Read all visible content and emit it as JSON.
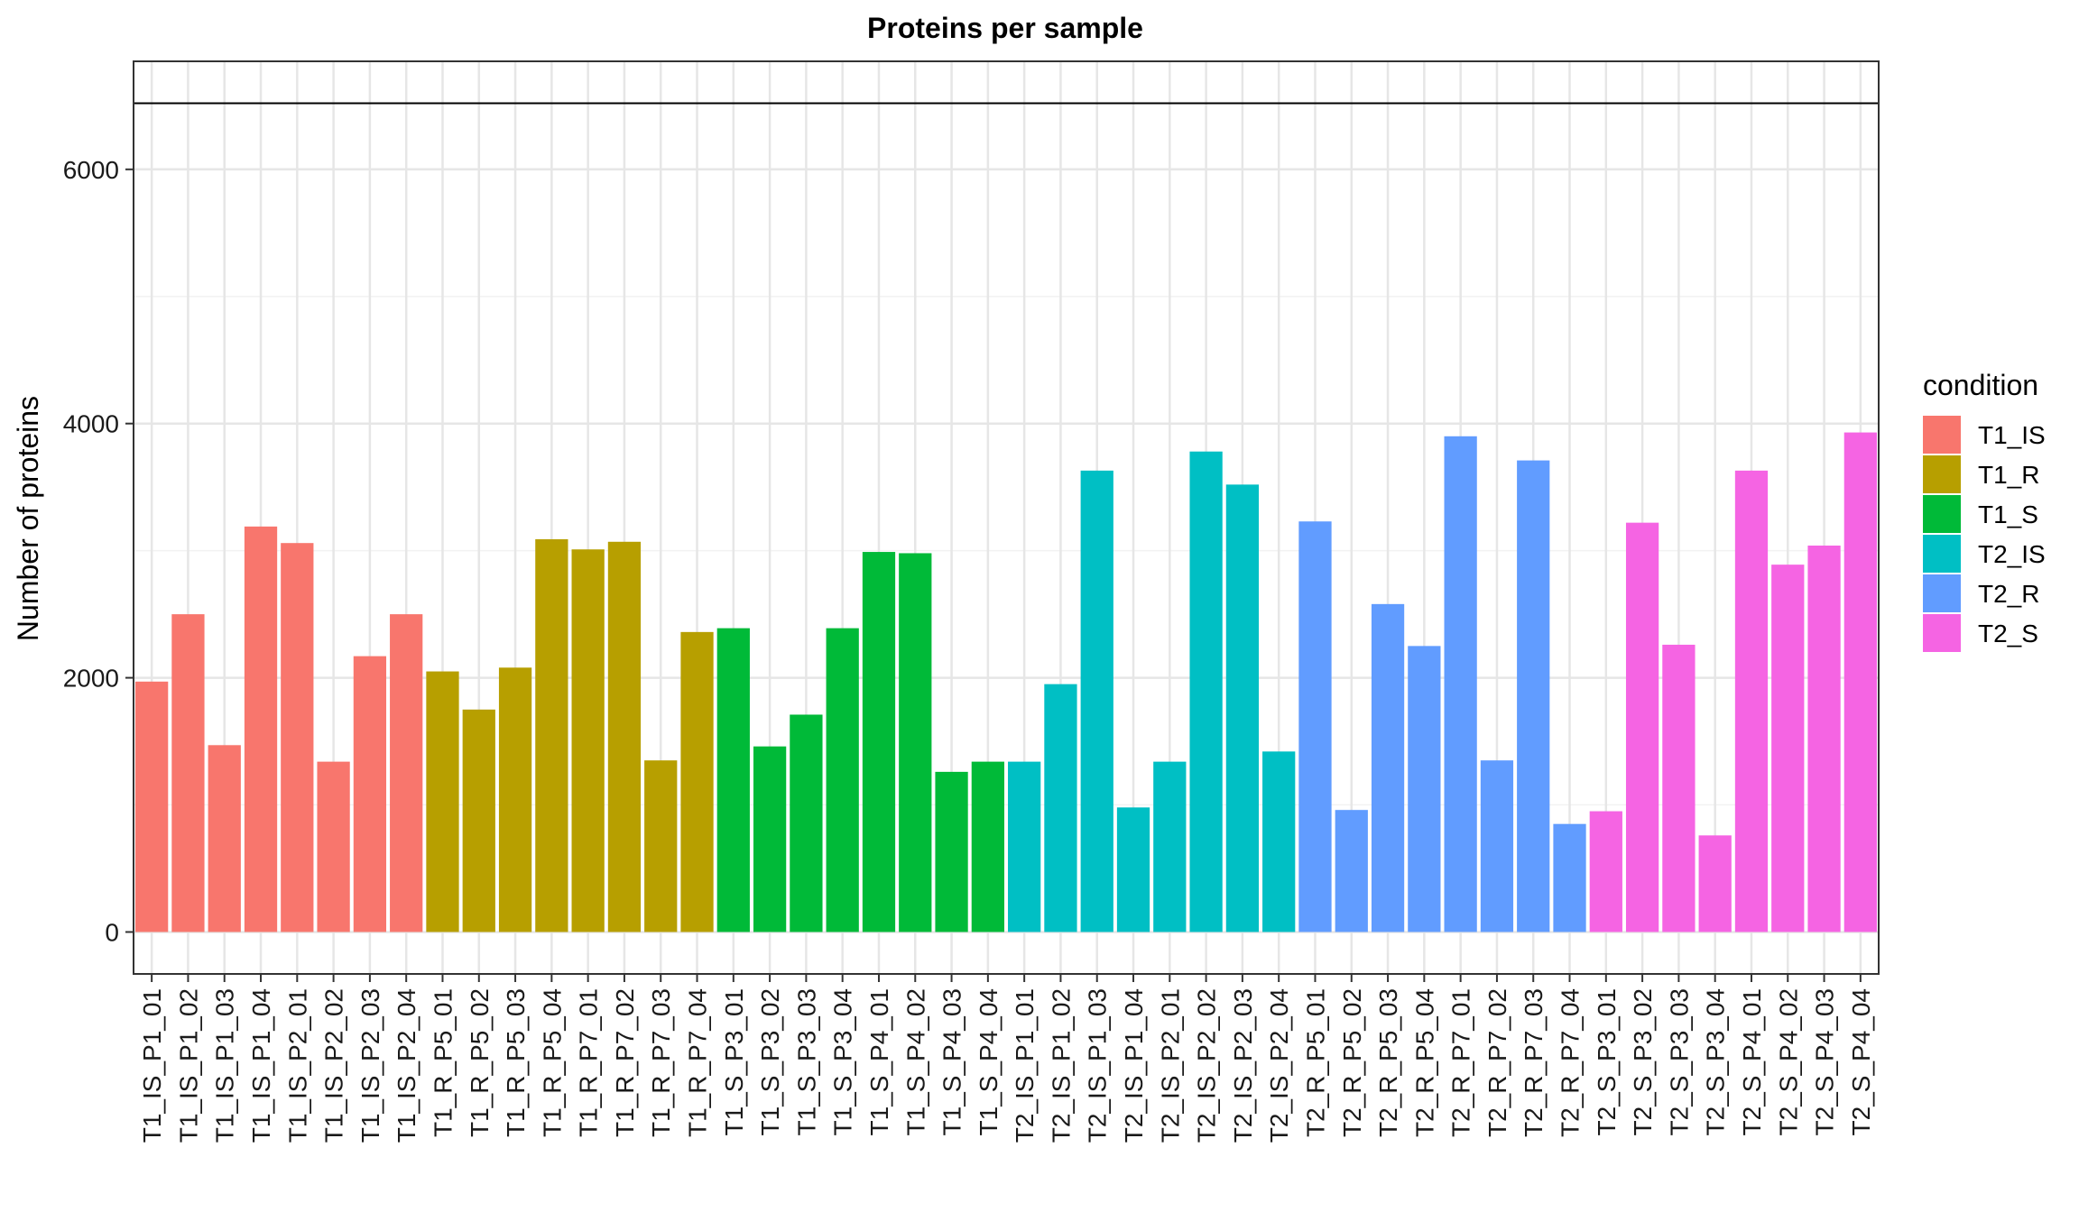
{
  "chart_data": {
    "type": "bar",
    "title": "Proteins per sample",
    "xlabel": "",
    "ylabel": "Number of proteins",
    "ylim": [
      -330,
      6850
    ],
    "yticks": [
      0,
      2000,
      4000,
      6000
    ],
    "ytick_labels": [
      "0",
      "2000",
      "4000",
      "6000"
    ],
    "reference_line": 6520,
    "grid": true,
    "legend": {
      "title": "condition",
      "position": "right",
      "entries": [
        {
          "name": "T1_IS",
          "color": "#F8766D"
        },
        {
          "name": "T1_R",
          "color": "#B79F00"
        },
        {
          "name": "T1_S",
          "color": "#00BA38"
        },
        {
          "name": "T2_IS",
          "color": "#00BFC4"
        },
        {
          "name": "T2_R",
          "color": "#619CFF"
        },
        {
          "name": "T2_S",
          "color": "#F564E3"
        }
      ]
    },
    "categories": [
      "T1_IS_P1_01",
      "T1_IS_P1_02",
      "T1_IS_P1_03",
      "T1_IS_P1_04",
      "T1_IS_P2_01",
      "T1_IS_P2_02",
      "T1_IS_P2_03",
      "T1_IS_P2_04",
      "T1_R_P5_01",
      "T1_R_P5_02",
      "T1_R_P5_03",
      "T1_R_P5_04",
      "T1_R_P7_01",
      "T1_R_P7_02",
      "T1_R_P7_03",
      "T1_R_P7_04",
      "T1_S_P3_01",
      "T1_S_P3_02",
      "T1_S_P3_03",
      "T1_S_P3_04",
      "T1_S_P4_01",
      "T1_S_P4_02",
      "T1_S_P4_03",
      "T1_S_P4_04",
      "T2_IS_P1_01",
      "T2_IS_P1_02",
      "T2_IS_P1_03",
      "T2_IS_P1_04",
      "T2_IS_P2_01",
      "T2_IS_P2_02",
      "T2_IS_P2_03",
      "T2_IS_P2_04",
      "T2_R_P5_01",
      "T2_R_P5_02",
      "T2_R_P5_03",
      "T2_R_P5_04",
      "T2_R_P7_01",
      "T2_R_P7_02",
      "T2_R_P7_03",
      "T2_R_P7_04",
      "T2_S_P3_01",
      "T2_S_P3_02",
      "T2_S_P3_03",
      "T2_S_P3_04",
      "T2_S_P4_01",
      "T2_S_P4_02",
      "T2_S_P4_03",
      "T2_S_P4_04"
    ],
    "values": [
      1970,
      2500,
      1470,
      3190,
      3060,
      1340,
      2170,
      2500,
      2050,
      1750,
      2080,
      3090,
      3010,
      3070,
      1350,
      2360,
      2390,
      1460,
      1710,
      2390,
      2990,
      2980,
      1260,
      1340,
      1340,
      1950,
      3630,
      980,
      1340,
      3780,
      3520,
      1420,
      3230,
      960,
      2580,
      2250,
      3900,
      1350,
      3710,
      850,
      950,
      3220,
      2260,
      760,
      3630,
      2890,
      3040,
      3930
    ],
    "conditions": [
      "T1_IS",
      "T1_IS",
      "T1_IS",
      "T1_IS",
      "T1_IS",
      "T1_IS",
      "T1_IS",
      "T1_IS",
      "T1_R",
      "T1_R",
      "T1_R",
      "T1_R",
      "T1_R",
      "T1_R",
      "T1_R",
      "T1_R",
      "T1_S",
      "T1_S",
      "T1_S",
      "T1_S",
      "T1_S",
      "T1_S",
      "T1_S",
      "T1_S",
      "T2_IS",
      "T2_IS",
      "T2_IS",
      "T2_IS",
      "T2_IS",
      "T2_IS",
      "T2_IS",
      "T2_IS",
      "T2_R",
      "T2_R",
      "T2_R",
      "T2_R",
      "T2_R",
      "T2_R",
      "T2_R",
      "T2_R",
      "T2_S",
      "T2_S",
      "T2_S",
      "T2_S",
      "T2_S",
      "T2_S",
      "T2_S",
      "T2_S"
    ]
  }
}
